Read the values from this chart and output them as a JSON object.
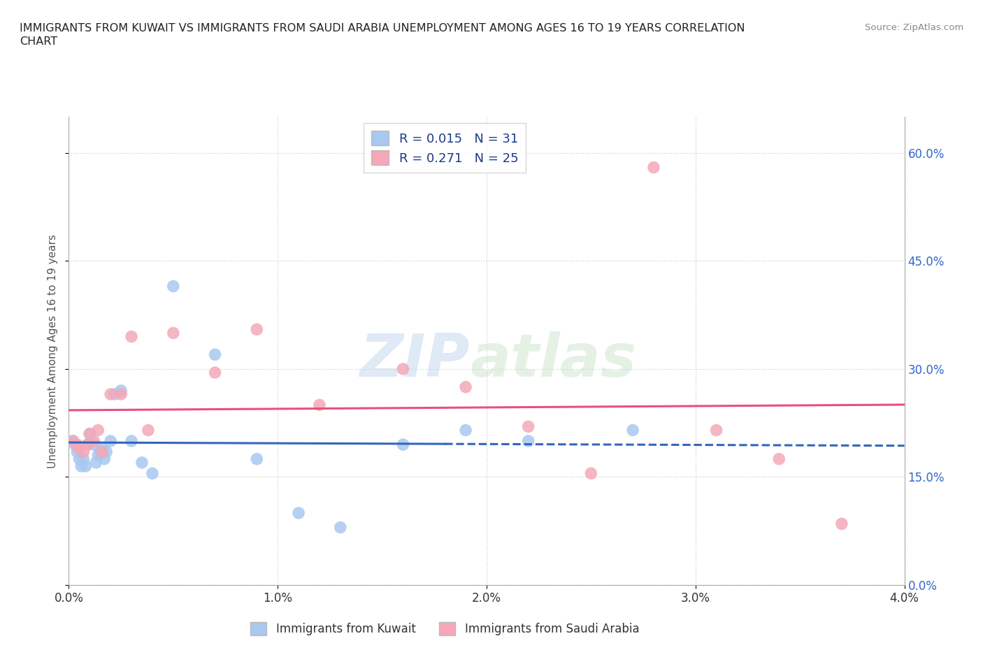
{
  "title": "IMMIGRANTS FROM KUWAIT VS IMMIGRANTS FROM SAUDI ARABIA UNEMPLOYMENT AMONG AGES 16 TO 19 YEARS CORRELATION\nCHART",
  "source": "Source: ZipAtlas.com",
  "ylabel": "Unemployment Among Ages 16 to 19 years",
  "xlim": [
    0.0,
    0.04
  ],
  "ylim": [
    0.0,
    0.65
  ],
  "xticks": [
    0.0,
    0.01,
    0.02,
    0.03,
    0.04
  ],
  "xticklabels": [
    "0.0%",
    "1.0%",
    "2.0%",
    "3.0%",
    "4.0%"
  ],
  "yticks": [
    0.0,
    0.15,
    0.3,
    0.45,
    0.6
  ],
  "yticklabels": [
    "0.0%",
    "15.0%",
    "30.0%",
    "45.0%",
    "60.0%"
  ],
  "kuwait_color": "#a8c8f0",
  "saudi_color": "#f4a8b8",
  "kuwait_line_color": "#3366bb",
  "saudi_line_color": "#e8507a",
  "r_kuwait": 0.015,
  "n_kuwait": 31,
  "r_saudi": 0.271,
  "n_saudi": 25,
  "legend_r_color": "#1a3a8a",
  "watermark_text": "ZIP",
  "watermark_text2": "atlas",
  "kuwait_x": [
    0.0002,
    0.0003,
    0.0004,
    0.0005,
    0.0006,
    0.0007,
    0.0008,
    0.0009,
    0.001,
    0.0012,
    0.0013,
    0.0014,
    0.0015,
    0.0016,
    0.0017,
    0.0018,
    0.002,
    0.0022,
    0.0025,
    0.003,
    0.0035,
    0.004,
    0.005,
    0.007,
    0.009,
    0.011,
    0.013,
    0.016,
    0.019,
    0.022,
    0.027
  ],
  "kuwait_y": [
    0.2,
    0.195,
    0.185,
    0.175,
    0.165,
    0.175,
    0.165,
    0.195,
    0.21,
    0.195,
    0.17,
    0.18,
    0.185,
    0.19,
    0.175,
    0.185,
    0.2,
    0.265,
    0.27,
    0.2,
    0.17,
    0.155,
    0.415,
    0.32,
    0.175,
    0.1,
    0.08,
    0.195,
    0.215,
    0.2,
    0.215
  ],
  "saudi_x": [
    0.0002,
    0.0004,
    0.0005,
    0.0007,
    0.0009,
    0.001,
    0.0012,
    0.0014,
    0.0016,
    0.002,
    0.0025,
    0.003,
    0.0038,
    0.005,
    0.007,
    0.009,
    0.012,
    0.016,
    0.019,
    0.022,
    0.025,
    0.028,
    0.031,
    0.034,
    0.037
  ],
  "saudi_y": [
    0.2,
    0.195,
    0.19,
    0.185,
    0.195,
    0.21,
    0.2,
    0.215,
    0.185,
    0.265,
    0.265,
    0.345,
    0.215,
    0.35,
    0.295,
    0.355,
    0.25,
    0.3,
    0.275,
    0.22,
    0.155,
    0.58,
    0.215,
    0.175,
    0.085
  ],
  "background_color": "#ffffff",
  "grid_color": "#cccccc",
  "tick_label_color": "#3366cc"
}
